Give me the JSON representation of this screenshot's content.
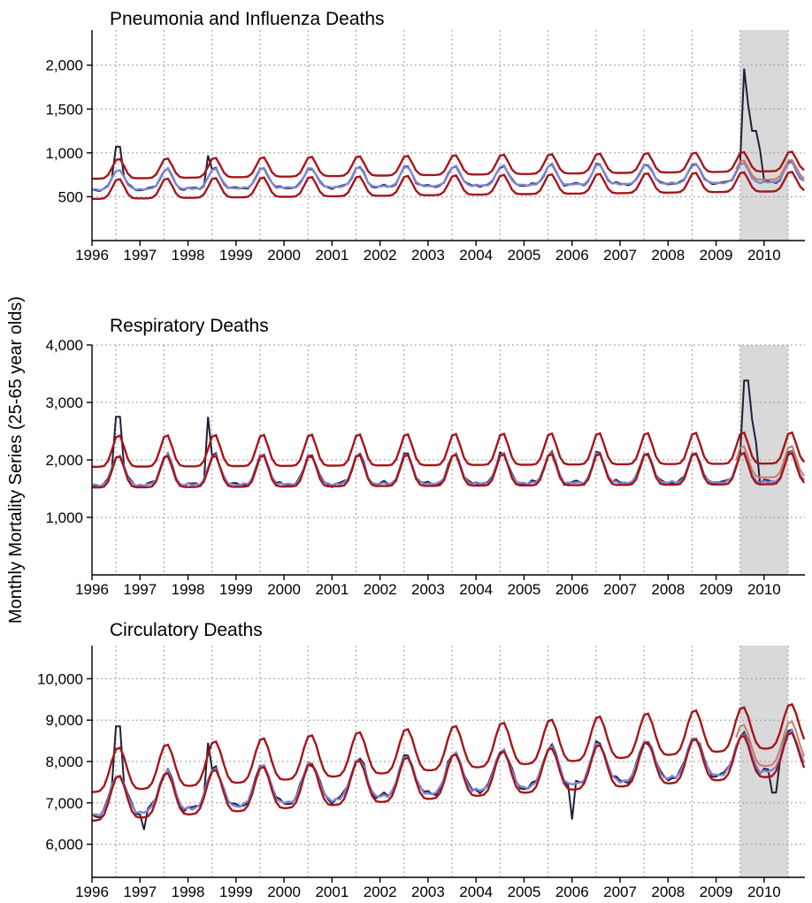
{
  "figure": {
    "ylabel": "Monthly Mortality Series (25-65 year olds)"
  },
  "chart_data": [
    {
      "type": "line",
      "title": "Pneumonia and Influenza Deaths",
      "xlabel": "",
      "ylabel": "Monthly Mortality Series (25-65 year olds)",
      "x_ticks": [
        "1996",
        "1997",
        "1998",
        "1999",
        "2000",
        "2001",
        "2002",
        "2003",
        "2004",
        "2005",
        "2006",
        "2007",
        "2008",
        "2009",
        "2010"
      ],
      "y_ticks": [
        "500",
        "1,000",
        "1,500",
        "2,000"
      ],
      "y_tick_values": [
        500,
        1000,
        1500,
        2000
      ],
      "ylim": [
        0,
        2400
      ],
      "xlim": [
        1996.0,
        2010.85
      ],
      "grid": true,
      "shaded_period": [
        2009.5,
        2010.5
      ],
      "model": {
        "base": 580,
        "trend": 6,
        "amp": 230,
        "peak": 0.55,
        "sharp": 3.5,
        "upper_gap": 125,
        "lower_gap": 105,
        "fit_amp_scale": 1.0
      },
      "spikes": [
        [
          1996.55,
          1070
        ],
        [
          1998.42,
          970
        ],
        [
          2009.6,
          1960
        ],
        [
          2009.7,
          1550
        ],
        [
          2009.8,
          1250
        ],
        [
          2009.9,
          1030
        ]
      ],
      "series": [
        {
          "name": "",
          "role": "observed",
          "color": "#1f1f3a"
        },
        {
          "name": "",
          "role": "fitted",
          "color": "#7f86d4"
        },
        {
          "name": "",
          "role": "upper bound",
          "color": "#a4161a"
        },
        {
          "name": "",
          "role": "lower bound",
          "color": "#a4161a"
        },
        {
          "name": "",
          "role": "projected bound",
          "color": "#c97a6a"
        }
      ]
    },
    {
      "type": "line",
      "title": "Respiratory Deaths",
      "xlabel": "",
      "ylabel": "Monthly Mortality Series (25-65 year olds)",
      "x_ticks": [
        "1996",
        "1997",
        "1998",
        "1999",
        "2000",
        "2001",
        "2002",
        "2003",
        "2004",
        "2005",
        "2006",
        "2007",
        "2008",
        "2009",
        "2010"
      ],
      "y_ticks": [
        "1,000",
        "2,000",
        "3,000",
        "4,000"
      ],
      "y_tick_values": [
        1000,
        2000,
        3000,
        4000
      ],
      "ylim": [
        0,
        4000
      ],
      "xlim": [
        1996.0,
        2010.85
      ],
      "grid": true,
      "shaded_period": [
        2009.5,
        2010.5
      ],
      "model": {
        "base": 1560,
        "trend": 4,
        "amp": 560,
        "peak": 0.55,
        "sharp": 3.5,
        "upper_gap": 320,
        "lower_gap": 40,
        "fit_amp_scale": 0.95
      },
      "spikes": [
        [
          1996.55,
          2750
        ],
        [
          1998.42,
          2750
        ],
        [
          2009.62,
          3380
        ],
        [
          2009.72,
          2700
        ],
        [
          2009.82,
          2300
        ],
        [
          2004.5,
          2130
        ]
      ],
      "series": [
        {
          "name": "",
          "role": "observed",
          "color": "#1f1f3a"
        },
        {
          "name": "",
          "role": "fitted",
          "color": "#7f86d4"
        },
        {
          "name": "",
          "role": "upper bound",
          "color": "#a4161a"
        },
        {
          "name": "",
          "role": "lower bound",
          "color": "#a4161a"
        },
        {
          "name": "",
          "role": "projected bound",
          "color": "#c97a6a"
        }
      ]
    },
    {
      "type": "line",
      "title": "Circulatory Deaths",
      "xlabel": "",
      "ylabel": "Monthly Mortality Series (25-65 year olds)",
      "x_ticks": [
        "1996",
        "1997",
        "1998",
        "1999",
        "2000",
        "2001",
        "2002",
        "2003",
        "2004",
        "2005",
        "2006",
        "2007",
        "2008",
        "2009",
        "2010"
      ],
      "y_ticks": [
        "6,000",
        "7,000",
        "8,000",
        "9,000",
        "10,000"
      ],
      "y_tick_values": [
        6000,
        7000,
        8000,
        9000,
        10000
      ],
      "ylim": [
        5200,
        10800
      ],
      "xlim": [
        1996.0,
        2010.85
      ],
      "grid": true,
      "shaded_period": [
        2009.5,
        2010.5
      ],
      "model": {
        "base": 6700,
        "trend": 75,
        "amp": 1050,
        "peak": 0.55,
        "sharp": 2.0,
        "upper_gap": 560,
        "lower_gap": 130,
        "fit_amp_scale": 0.9
      },
      "spikes": [
        [
          1996.55,
          8850
        ],
        [
          1998.42,
          8450
        ],
        [
          2006.0,
          6600
        ],
        [
          1997.1,
          6350
        ],
        [
          2010.2,
          7250
        ]
      ],
      "series": [
        {
          "name": "",
          "role": "observed",
          "color": "#1f1f3a"
        },
        {
          "name": "",
          "role": "fitted",
          "color": "#7f86d4"
        },
        {
          "name": "",
          "role": "upper bound",
          "color": "#a4161a"
        },
        {
          "name": "",
          "role": "lower bound",
          "color": "#a4161a"
        },
        {
          "name": "",
          "role": "projected bound",
          "color": "#c97a6a"
        }
      ]
    }
  ]
}
